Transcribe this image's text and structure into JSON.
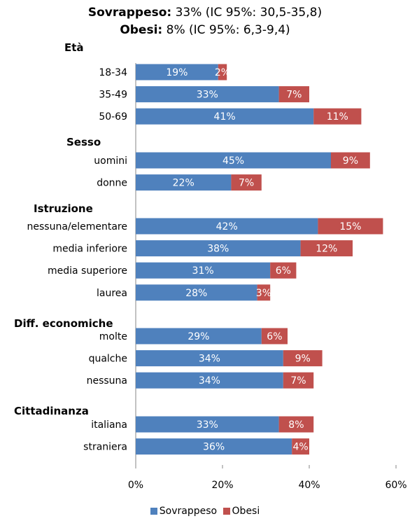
{
  "title": {
    "line1_bold": "Sovrappeso:",
    "line1_rest": " 33% (IC 95%: 30,5-35,8)",
    "line2_bold": "Obesi:",
    "line2_rest": " 8% (IC 95%: 6,3-9,4)"
  },
  "colors": {
    "sovrappeso": "#4F81BD",
    "obesi": "#C0504D"
  },
  "chart_data": {
    "type": "bar",
    "orientation": "horizontal",
    "stacked": true,
    "xlim": [
      0,
      60
    ],
    "x_ticks": [
      "0%",
      "20%",
      "40%",
      "60%"
    ],
    "legend": {
      "position": "bottom",
      "entries": [
        "Sovrappeso",
        "Obesi"
      ]
    },
    "groups": [
      {
        "name": "Età",
        "categories": [
          {
            "label": "18-34",
            "sovrappeso": 19,
            "obesi": 2
          },
          {
            "label": "35-49",
            "sovrappeso": 33,
            "obesi": 7
          },
          {
            "label": "50-69",
            "sovrappeso": 41,
            "obesi": 11
          }
        ]
      },
      {
        "name": "Sesso",
        "categories": [
          {
            "label": "uomini",
            "sovrappeso": 45,
            "obesi": 9
          },
          {
            "label": "donne",
            "sovrappeso": 22,
            "obesi": 7
          }
        ]
      },
      {
        "name": "Istruzione",
        "categories": [
          {
            "label": "nessuna/elementare",
            "sovrappeso": 42,
            "obesi": 15
          },
          {
            "label": "media inferiore",
            "sovrappeso": 38,
            "obesi": 12
          },
          {
            "label": "media superiore",
            "sovrappeso": 31,
            "obesi": 6
          },
          {
            "label": "laurea",
            "sovrappeso": 28,
            "obesi": 3
          }
        ]
      },
      {
        "name": "Diff. economiche",
        "categories": [
          {
            "label": "molte",
            "sovrappeso": 29,
            "obesi": 6
          },
          {
            "label": "qualche",
            "sovrappeso": 34,
            "obesi": 9
          },
          {
            "label": "nessuna",
            "sovrappeso": 34,
            "obesi": 7
          }
        ]
      },
      {
        "name": "Cittadinanza",
        "categories": [
          {
            "label": "italiana",
            "sovrappeso": 33,
            "obesi": 8
          },
          {
            "label": "straniera",
            "sovrappeso": 36,
            "obesi": 4
          }
        ]
      }
    ]
  }
}
